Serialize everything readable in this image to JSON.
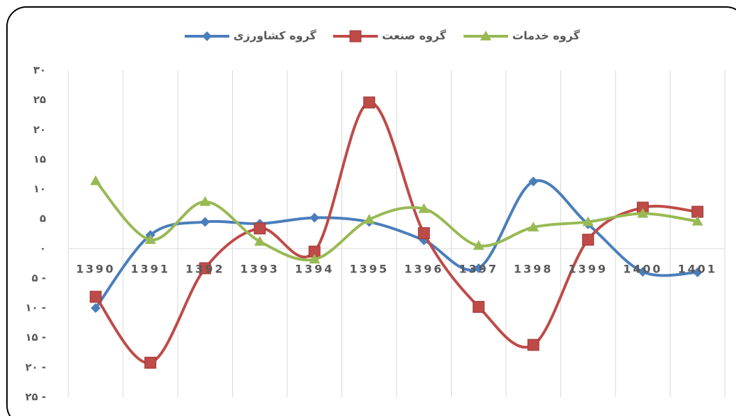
{
  "chart_data": {
    "type": "line",
    "smooth": true,
    "categories": [
      "1390",
      "1391",
      "1392",
      "1393",
      "1394",
      "1395",
      "1396",
      "1397",
      "1398",
      "1399",
      "1400",
      "1401"
    ],
    "series": [
      {
        "name": "گروه کشاورزی",
        "color": "#4a7ebb",
        "marker": "diamond",
        "values": [
          -10,
          2.3,
          4.5,
          4.2,
          5.2,
          4.5,
          1.4,
          -3.3,
          11.3,
          4.1,
          -3.9,
          -4.0
        ]
      },
      {
        "name": "گروه صنعت",
        "color": "#be4b48",
        "marker": "square",
        "values": [
          -8.1,
          -19.2,
          -3.3,
          3.4,
          -0.5,
          24.6,
          2.6,
          -9.8,
          -16.2,
          1.5,
          6.9,
          6.2
        ]
      },
      {
        "name": "گروه خدمات",
        "color": "#98b954",
        "marker": "triangle",
        "values": [
          11.4,
          1.5,
          7.9,
          1.2,
          -1.8,
          4.9,
          6.7,
          0.5,
          3.6,
          4.5,
          5.9,
          4.6
        ]
      }
    ],
    "ylim": [
      -25,
      30
    ],
    "yticks": [
      {
        "value": 30,
        "label": "۳۰"
      },
      {
        "value": 25,
        "label": "۲۵"
      },
      {
        "value": 20,
        "label": "۲۰"
      },
      {
        "value": 15,
        "label": "۱۵"
      },
      {
        "value": 10,
        "label": "۱۰"
      },
      {
        "value": 5,
        "label": "۵"
      },
      {
        "value": 0,
        "label": "۰"
      },
      {
        "value": -5,
        "label": "۵ -"
      },
      {
        "value": -10,
        "label": "۱۰ -"
      },
      {
        "value": -15,
        "label": "۱۵ -"
      },
      {
        "value": -20,
        "label": "۲۰ -"
      },
      {
        "value": -25,
        "label": "۲۵ -"
      }
    ],
    "grid": "vertical",
    "legend": "top"
  }
}
